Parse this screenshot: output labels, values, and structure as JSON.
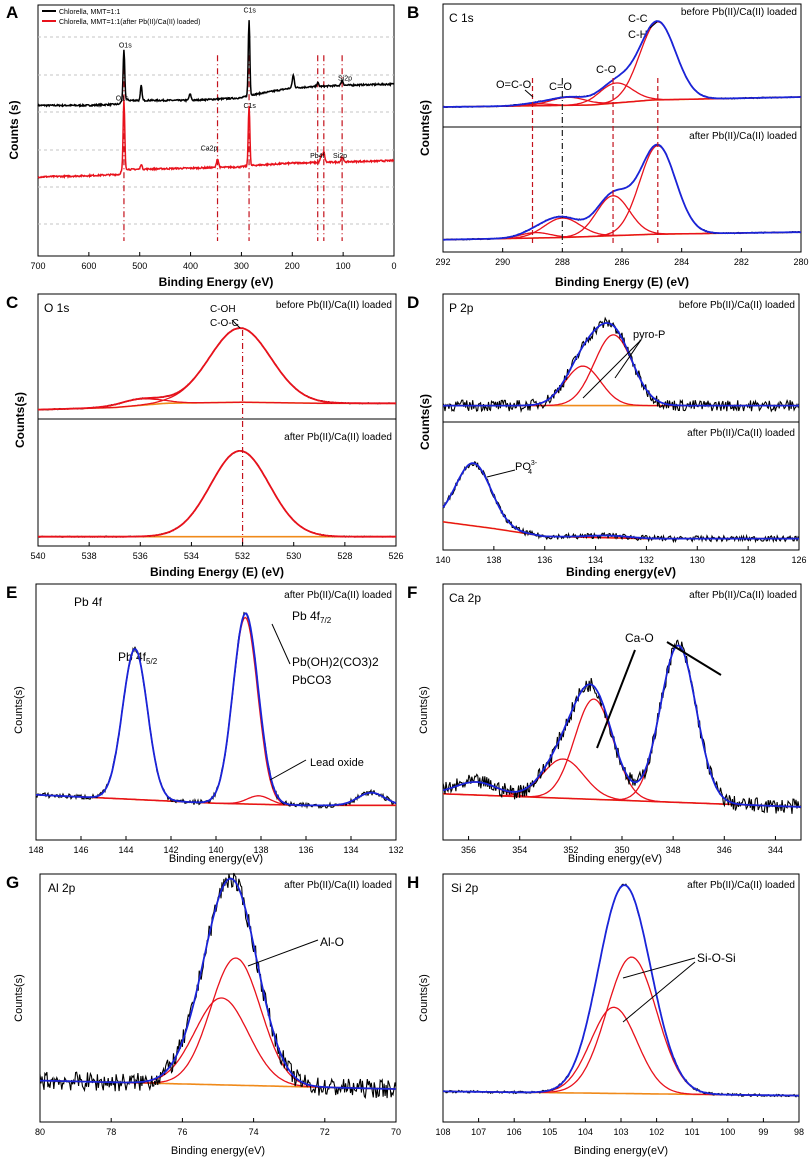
{
  "colors": {
    "black": "#000000",
    "red": "#e8121c",
    "blue": "#1a24d9",
    "orange": "#f08a1a",
    "grid": "#c4c4c4",
    "dashed_red": "#c4121c",
    "dashdot_black": "#222222"
  },
  "chart_data": [
    {
      "panel": "A",
      "type": "line",
      "title": "",
      "xlabel": "Binding Energy (eV)",
      "ylabel": "Counts (s)",
      "xlim": [
        700,
        0
      ],
      "xticks": [
        700,
        600,
        500,
        400,
        300,
        200,
        100,
        0
      ],
      "ylim": [
        0,
        10
      ],
      "legend": {
        "placement": "top-left",
        "entries": [
          "Chlorella,  MMT=1:1",
          "Chlorella,  MMT=1:1(after Pb(II)/Ca(II) loaded)"
        ]
      },
      "series": [
        {
          "name": "Chlorella,  MMT=1:1",
          "color": "black",
          "baseline": [
            [
              700,
              6.0
            ],
            [
              600,
              6.0
            ],
            [
              540,
              6.05
            ],
            [
              532,
              6.3
            ],
            [
              520,
              6.2
            ],
            [
              400,
              6.2
            ],
            [
              300,
              6.3
            ],
            [
              285,
              6.4
            ],
            [
              200,
              6.7
            ],
            [
              100,
              6.8
            ],
            [
              0,
              6.85
            ]
          ],
          "peaks": [
            {
              "x": 531,
              "h": 1.9,
              "w": 1.5
            },
            {
              "x": 497,
              "h": 0.6,
              "w": 1.5
            },
            {
              "x": 401,
              "h": 0.25,
              "w": 2
            },
            {
              "x": 285,
              "h": 3.0,
              "w": 1.5
            },
            {
              "x": 198,
              "h": 0.5,
              "w": 2
            },
            {
              "x": 150,
              "h": 0.15,
              "w": 2
            },
            {
              "x": 102,
              "h": 0.2,
              "w": 2
            }
          ]
        },
        {
          "name": "Chlorella,  MMT=1:1(after Pb(II)/Ca(II) loaded)",
          "color": "red",
          "baseline": [
            [
              700,
              3.15
            ],
            [
              600,
              3.2
            ],
            [
              540,
              3.25
            ],
            [
              532,
              3.5
            ],
            [
              520,
              3.45
            ],
            [
              400,
              3.5
            ],
            [
              300,
              3.55
            ],
            [
              285,
              3.6
            ],
            [
              200,
              3.7
            ],
            [
              100,
              3.75
            ],
            [
              0,
              3.8
            ]
          ],
          "peaks": [
            {
              "x": 531,
              "h": 2.7,
              "w": 1.5
            },
            {
              "x": 497,
              "h": 0.2,
              "w": 1.5
            },
            {
              "x": 347,
              "h": 0.35,
              "w": 2
            },
            {
              "x": 285,
              "h": 2.4,
              "w": 1.5
            },
            {
              "x": 143,
              "h": 0.25,
              "w": 2
            },
            {
              "x": 138,
              "h": 0.4,
              "w": 2
            },
            {
              "x": 102,
              "h": 0.2,
              "w": 2
            }
          ]
        }
      ],
      "vlines_dashdot": [
        531,
        347,
        285,
        150,
        138,
        102
      ],
      "annotations": [
        {
          "text": "O1s",
          "x": 541,
          "y": 8.3
        },
        {
          "text": "C1s",
          "x": 296,
          "y": 9.7
        },
        {
          "text": "Si2p",
          "x": 110,
          "y": 7.0
        },
        {
          "text": "O1s",
          "x": 547,
          "y": 6.2
        },
        {
          "text": "C1s",
          "x": 296,
          "y": 5.9
        },
        {
          "text": "Ca2p",
          "x": 380,
          "y": 4.2
        },
        {
          "text": "Pb4f",
          "x": 165,
          "y": 3.9
        },
        {
          "text": "Si2p",
          "x": 120,
          "y": 3.9
        }
      ]
    },
    {
      "panel": "B",
      "type": "line",
      "title": "C 1s",
      "xlabel": "Binding Energy (E) (eV)",
      "ylabel": "Counts(s)",
      "xlim": [
        292,
        280
      ],
      "xticks": [
        292,
        290,
        288,
        286,
        284,
        282,
        280
      ],
      "subplots": [
        {
          "label": "before Pb(II)/Ca(II) loaded",
          "ylim": [
            0,
            10
          ],
          "background": [
            [
              292,
              0.5
            ],
            [
              287,
              0.7
            ],
            [
              285,
              1.2
            ],
            [
              280,
              1.5
            ]
          ],
          "components": [
            {
              "center": 288.9,
              "height": 0.2,
              "sigma": 0.5
            },
            {
              "center": 287.8,
              "height": 0.8,
              "sigma": 0.6
            },
            {
              "center": 286.2,
              "height": 2.0,
              "sigma": 0.55
            },
            {
              "center": 284.8,
              "height": 7.8,
              "sigma": 0.6
            }
          ]
        },
        {
          "label": "after Pb(II)/Ca(II) loaded",
          "ylim": [
            0,
            10
          ],
          "background": [
            [
              292,
              0.4
            ],
            [
              288,
              0.6
            ],
            [
              285,
              0.9
            ],
            [
              280,
              1.1
            ]
          ],
          "components": [
            {
              "center": 288.9,
              "height": 0.5,
              "sigma": 0.5
            },
            {
              "center": 288.0,
              "height": 1.8,
              "sigma": 0.6
            },
            {
              "center": 286.3,
              "height": 3.7,
              "sigma": 0.55
            },
            {
              "center": 284.8,
              "height": 8.2,
              "sigma": 0.6
            }
          ]
        }
      ],
      "vlines_dashed": [
        289.0,
        288.0,
        286.3,
        284.8
      ],
      "annotations": [
        {
          "text": "O=C-O"
        },
        {
          "text": "C=O"
        },
        {
          "text": "C-O"
        },
        {
          "text": "C-C"
        },
        {
          "text": "C-H"
        }
      ]
    },
    {
      "panel": "C",
      "type": "line",
      "title": "O 1s",
      "xlabel": "Binding Energy (E) (eV)",
      "ylabel": "Counts(s)",
      "xlim": [
        540,
        526
      ],
      "xticks": [
        540,
        538,
        536,
        534,
        532,
        530,
        528,
        526
      ],
      "subplots": [
        {
          "label": "before Pb(II)/Ca(II) loaded",
          "ylim": [
            0,
            10
          ],
          "background": [
            [
              540,
              0.6
            ],
            [
              537,
              0.8
            ],
            [
              535,
              1.2
            ],
            [
              532,
              1.3
            ],
            [
              529,
              1.2
            ],
            [
              526,
              1.2
            ]
          ],
          "components": [
            {
              "center": 536.0,
              "height": 0.6,
              "sigma": 0.8
            },
            {
              "center": 532.1,
              "height": 7.0,
              "sigma": 1.2
            }
          ]
        },
        {
          "label": "after Pb(II)/Ca(II) loaded",
          "ylim": [
            0,
            10
          ],
          "background": [
            [
              540,
              0.3
            ],
            [
              526,
              0.3
            ]
          ],
          "components": [
            {
              "center": 532.1,
              "height": 7.8,
              "sigma": 1.15
            }
          ]
        }
      ],
      "vlines_dashdot": [
        532.0
      ],
      "annotations": [
        {
          "text": "C-OH"
        },
        {
          "text": "C-O-C"
        }
      ]
    },
    {
      "panel": "D",
      "type": "line",
      "title": "P 2p",
      "xlabel": "Binding energy(eV)",
      "ylabel": "Counts(s)",
      "xlim": [
        140,
        126
      ],
      "xticks": [
        140,
        138,
        136,
        134,
        132,
        130,
        128,
        126
      ],
      "subplots": [
        {
          "label": "before Pb(II)/Ca(II) loaded",
          "ylim": [
            0,
            10
          ],
          "background": [
            [
              140,
              1.0
            ],
            [
              126,
              1.0
            ]
          ],
          "components": [
            {
              "center": 134.5,
              "height": 3.8,
              "sigma": 0.7
            },
            {
              "center": 133.3,
              "height": 6.8,
              "sigma": 0.75
            }
          ]
        },
        {
          "label": "after Pb(II)/Ca(II) loaded",
          "ylim": [
            0,
            10
          ],
          "background": [
            [
              140,
              1.8
            ],
            [
              138,
              1.2
            ],
            [
              136,
              0.5
            ],
            [
              132,
              0.3
            ],
            [
              126,
              0.3
            ]
          ],
          "components": [
            {
              "center": 138.8,
              "height": 5.6,
              "sigma": 0.7
            },
            {
              "center": 133.5,
              "height": 0.2,
              "sigma": 0.8
            }
          ]
        }
      ],
      "annotations": [
        {
          "text": "pyro-P"
        },
        {
          "text": "PO",
          "sup": "3-",
          "sub": "4"
        }
      ]
    },
    {
      "panel": "E",
      "type": "line",
      "title": "Pb 4f",
      "xlabel": "Binding energy(eV)",
      "ylabel": "Counts(s)",
      "xlim": [
        148,
        132
      ],
      "xticks": [
        148,
        146,
        144,
        142,
        140,
        138,
        136,
        134,
        132
      ],
      "subplots": [
        {
          "label": "after Pb(II)/Ca(II) loaded",
          "ylim": [
            0,
            10
          ],
          "background": [
            [
              148,
              1.0
            ],
            [
              144,
              0.8
            ],
            [
              140,
              0.6
            ],
            [
              136,
              0.5
            ],
            [
              132,
              0.5
            ]
          ],
          "components": [
            {
              "center": 143.6,
              "height": 7.1,
              "sigma": 0.55
            },
            {
              "center": 138.7,
              "height": 8.8,
              "sigma": 0.55
            },
            {
              "center": 138.1,
              "height": 0.4,
              "sigma": 0.5
            },
            {
              "center": 133.1,
              "height": 0.6,
              "sigma": 0.6
            }
          ]
        }
      ],
      "annotations": [
        {
          "text": "Pb 4f",
          "sub": "5/2"
        },
        {
          "text": "Pb 4f",
          "sub": "7/2"
        },
        {
          "text": "Pb(OH)2(CO3)2"
        },
        {
          "text": "PbCO3"
        },
        {
          "text": "Lead oxide"
        }
      ]
    },
    {
      "panel": "F",
      "type": "line",
      "title": "Ca 2p",
      "xlabel": "Binding energy(eV)",
      "ylabel": "Counts(s)",
      "xlim": [
        357,
        343
      ],
      "xticks": [
        356,
        354,
        352,
        350,
        348,
        346,
        344
      ],
      "subplots": [
        {
          "label": "after Pb(II)/Ca(II) loaded",
          "ylim": [
            0,
            10
          ],
          "background": [
            [
              357,
              1.2
            ],
            [
              343,
              0.6
            ]
          ],
          "components": [
            {
              "center": 355.7,
              "height": 0.6,
              "sigma": 0.8
            },
            {
              "center": 352.3,
              "height": 1.8,
              "sigma": 0.8
            },
            {
              "center": 351.1,
              "height": 4.6,
              "sigma": 0.75
            },
            {
              "center": 347.8,
              "height": 7.2,
              "sigma": 0.7
            }
          ]
        }
      ],
      "annotations": [
        {
          "text": "Ca-O"
        }
      ]
    },
    {
      "panel": "G",
      "type": "line",
      "title": "Al 2p",
      "xlabel": "Binding energy(eV)",
      "ylabel": "Counts(s)",
      "xlim": [
        80,
        70
      ],
      "xticks": [
        80,
        78,
        76,
        74,
        72,
        70
      ],
      "subplots": [
        {
          "label": "after Pb(II)/Ca(II) loaded",
          "ylim": [
            0,
            10
          ],
          "background": [
            [
              80,
              1.2
            ],
            [
              75,
              1.0
            ],
            [
              70,
              0.8
            ]
          ],
          "components": [
            {
              "center": 74.9,
              "height": 4.1,
              "sigma": 0.75
            },
            {
              "center": 74.5,
              "height": 6.0,
              "sigma": 0.7
            }
          ]
        }
      ],
      "annotations": [
        {
          "text": "Al-O"
        }
      ]
    },
    {
      "panel": "H",
      "type": "line",
      "title": "Si 2p",
      "xlabel": "Binding energy(eV)",
      "ylabel": "Counts(s)",
      "xlim": [
        108,
        98
      ],
      "xticks": [
        108,
        107,
        106,
        105,
        104,
        103,
        102,
        101,
        100,
        99,
        98
      ],
      "subplots": [
        {
          "label": "after Pb(II)/Ca(II) loaded",
          "ylim": [
            0,
            10
          ],
          "background": [
            [
              108,
              0.6
            ],
            [
              98,
              0.4
            ]
          ],
          "components": [
            {
              "center": 103.2,
              "height": 4.1,
              "sigma": 0.65
            },
            {
              "center": 102.7,
              "height": 6.5,
              "sigma": 0.7
            }
          ]
        }
      ],
      "annotations": [
        {
          "text": "Si-O-Si"
        }
      ]
    }
  ]
}
